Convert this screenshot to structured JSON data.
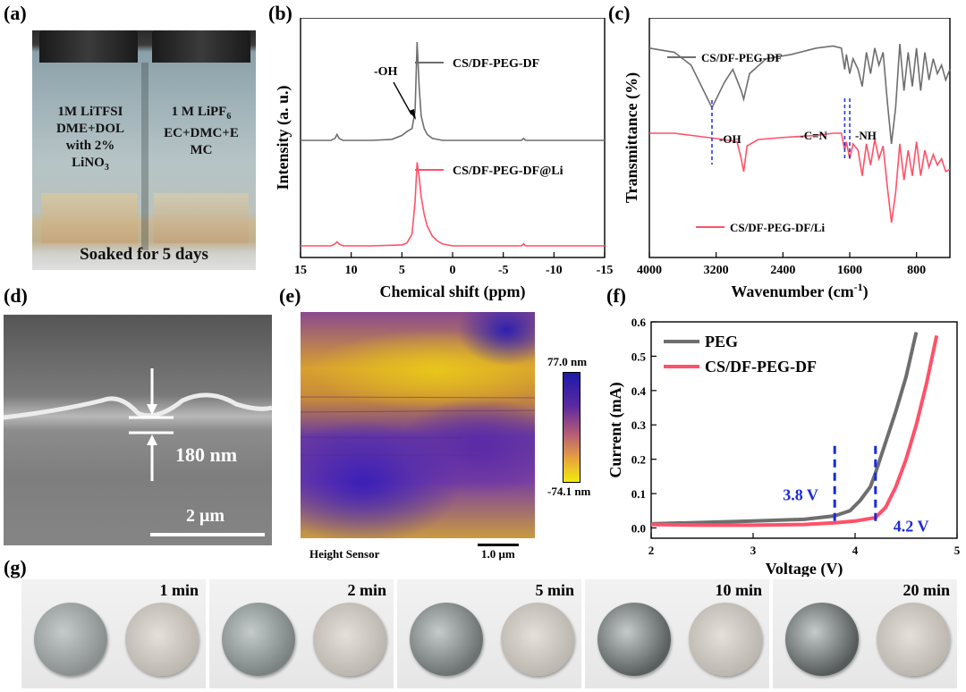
{
  "panels": {
    "a": {
      "label": "(a)",
      "vial_left_lines": [
        "1M LiTFSI",
        "DME+DOL",
        "with 2%",
        "LiNO",
        "3"
      ],
      "vial_right_line1": "1 M LiPF",
      "vial_right_sub": "6",
      "vial_right_lines": [
        "EC+DMC+E",
        "MC"
      ],
      "caption": "Soaked for 5 days"
    },
    "b": {
      "label": "(b)",
      "annotation": "-OH"
    },
    "c": {
      "label": "(c)",
      "annotations": [
        "-OH",
        "-C=N",
        "-NH"
      ]
    },
    "d": {
      "label": "(d)",
      "thickness": "180 nm",
      "scale": "2 μm"
    },
    "e": {
      "label": "(e)",
      "colorbar_max": "77.0 nm",
      "colorbar_min": "-74.1 nm",
      "sensor": "Height Sensor",
      "scale": "1.0 μm"
    },
    "f": {
      "label": "(f)",
      "annotations": [
        "3.8 V",
        "4.2 V"
      ]
    },
    "g": {
      "label": "(g)",
      "times": [
        "1 min",
        "2 min",
        "5 min",
        "10 min",
        "20 min"
      ]
    }
  },
  "chart_data": [
    {
      "id": "b",
      "type": "line",
      "xlabel": "Chemical shift (ppm)",
      "ylabel": "Intensity (a. u.)",
      "xlim": [
        15,
        -15
      ],
      "x_ticks": [
        15,
        10,
        5,
        0,
        -5,
        -10,
        -15
      ],
      "series": [
        {
          "name": "CS/DF-PEG-DF",
          "color": "#6e6e6e",
          "x": [
            15,
            12,
            11.6,
            11.4,
            11.2,
            10.8,
            8,
            6,
            5,
            4.5,
            4.0,
            3.7,
            3.5,
            3.3,
            3.1,
            2.8,
            2.5,
            2,
            1,
            0,
            -5,
            -6.8,
            -7,
            -7.2,
            -10,
            -15
          ],
          "y": [
            0,
            0,
            0.02,
            0.06,
            0.02,
            0,
            0,
            0.01,
            0.05,
            0.09,
            0.12,
            0.3,
            1.0,
            0.55,
            0.25,
            0.12,
            0.06,
            0.02,
            0,
            0,
            0,
            0,
            0.02,
            0,
            0,
            0
          ]
        },
        {
          "name": "CS/DF-PEG-DF@Li",
          "color": "#ff5168",
          "x": [
            15,
            12,
            11.6,
            11.4,
            11.2,
            10.8,
            8,
            5,
            4.5,
            4.0,
            3.7,
            3.5,
            3.3,
            3.1,
            2.8,
            2.5,
            2,
            1.5,
            1,
            0,
            -5,
            -6.8,
            -7,
            -7.2,
            -10,
            -15
          ],
          "y": [
            0,
            0,
            0.02,
            0.04,
            0.02,
            0,
            0,
            0.01,
            0.03,
            0.12,
            0.45,
            0.85,
            0.7,
            0.5,
            0.32,
            0.2,
            0.1,
            0.05,
            0.02,
            0,
            0,
            0,
            0.02,
            0,
            0,
            0
          ]
        }
      ]
    },
    {
      "id": "c",
      "type": "line",
      "xlabel": "Wavenumber (cm",
      "xlabel_sup": "-1",
      "xlabel_end": ")",
      "ylabel": "Transmittance (%)",
      "xlim": [
        4000,
        400
      ],
      "x_ticks": [
        4000,
        3200,
        2400,
        1600,
        800
      ],
      "series": [
        {
          "name": "CS/DF-PEG-DF",
          "color": "#6e6e6e",
          "x": [
            4000,
            3700,
            3500,
            3350,
            3250,
            3100,
            3000,
            2900,
            2870,
            2800,
            2600,
            2300,
            2000,
            1800,
            1700,
            1660,
            1640,
            1600,
            1560,
            1500,
            1450,
            1400,
            1350,
            1300,
            1250,
            1200,
            1150,
            1100,
            1050,
            1000,
            950,
            900,
            850,
            800,
            750,
            700,
            650,
            600,
            550,
            500,
            450,
            400
          ],
          "y": [
            0.9,
            0.88,
            0.82,
            0.7,
            0.62,
            0.74,
            0.8,
            0.7,
            0.66,
            0.78,
            0.85,
            0.87,
            0.9,
            0.91,
            0.9,
            0.8,
            0.87,
            0.78,
            0.85,
            0.8,
            0.72,
            0.88,
            0.78,
            0.9,
            0.82,
            0.88,
            0.65,
            0.45,
            0.62,
            0.92,
            0.7,
            0.88,
            0.72,
            0.9,
            0.7,
            0.88,
            0.75,
            0.85,
            0.78,
            0.82,
            0.75,
            0.8
          ]
        },
        {
          "name": "CS/DF-PEG-DF/Li",
          "color": "#ff5168",
          "x": [
            4000,
            3700,
            3500,
            3300,
            3100,
            2950,
            2900,
            2870,
            2830,
            2700,
            2400,
            2000,
            1800,
            1700,
            1660,
            1640,
            1600,
            1560,
            1500,
            1450,
            1400,
            1350,
            1300,
            1250,
            1200,
            1150,
            1100,
            1050,
            1000,
            950,
            900,
            850,
            800,
            750,
            700,
            650,
            600,
            550,
            500,
            450,
            400
          ],
          "y": [
            0.5,
            0.5,
            0.49,
            0.48,
            0.47,
            0.46,
            0.38,
            0.32,
            0.44,
            0.47,
            0.48,
            0.49,
            0.5,
            0.5,
            0.42,
            0.46,
            0.38,
            0.45,
            0.42,
            0.3,
            0.45,
            0.35,
            0.47,
            0.38,
            0.44,
            0.25,
            0.08,
            0.22,
            0.45,
            0.28,
            0.42,
            0.3,
            0.46,
            0.3,
            0.42,
            0.34,
            0.4,
            0.35,
            0.38,
            0.32,
            0.33
          ]
        }
      ]
    },
    {
      "id": "f",
      "type": "line",
      "xlabel": "Voltage (V)",
      "ylabel": "Current (mA)",
      "xlim": [
        2,
        5
      ],
      "ylim": [
        -0.03,
        0.6
      ],
      "x_ticks": [
        2,
        3,
        4,
        5
      ],
      "y_ticks": [
        0.0,
        0.1,
        0.2,
        0.3,
        0.4,
        0.5,
        0.6
      ],
      "series": [
        {
          "name": "PEG",
          "color": "#6e6e6e",
          "x": [
            2.0,
            2.5,
            3.0,
            3.5,
            3.8,
            3.95,
            4.05,
            4.15,
            4.2,
            4.3,
            4.4,
            4.5,
            4.6
          ],
          "y": [
            0.012,
            0.016,
            0.02,
            0.025,
            0.035,
            0.05,
            0.08,
            0.12,
            0.16,
            0.25,
            0.34,
            0.44,
            0.57
          ]
        },
        {
          "name": "CS/DF-PEG-DF",
          "color": "#ff5168",
          "x": [
            2.0,
            2.5,
            3.0,
            3.5,
            3.8,
            4.0,
            4.2,
            4.3,
            4.4,
            4.5,
            4.6,
            4.7,
            4.8
          ],
          "y": [
            0.01,
            0.008,
            0.008,
            0.01,
            0.015,
            0.02,
            0.03,
            0.06,
            0.12,
            0.2,
            0.3,
            0.42,
            0.56
          ]
        }
      ],
      "markers": [
        3.8,
        4.2
      ]
    }
  ]
}
